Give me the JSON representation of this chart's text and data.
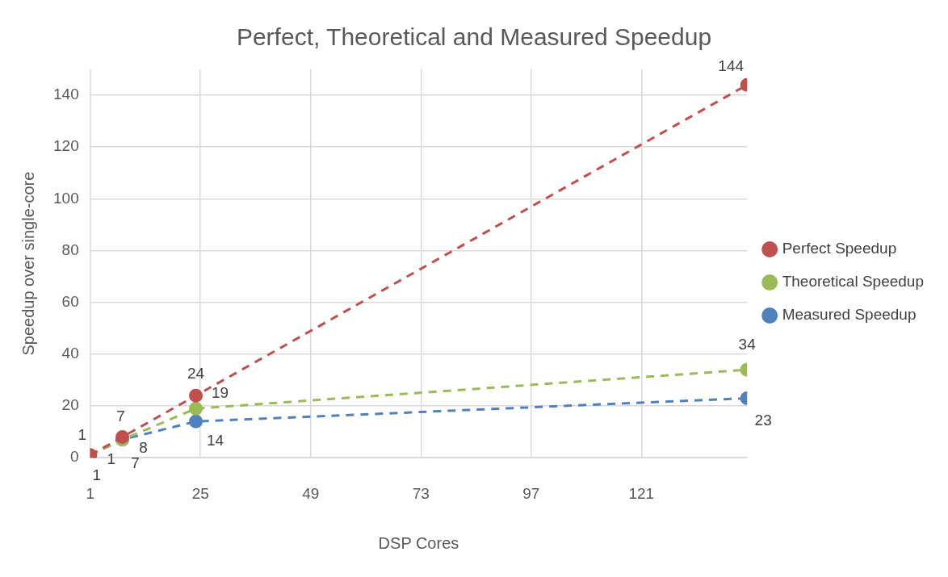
{
  "chart_data": {
    "type": "line",
    "title": "Perfect, Theoretical and Measured Speedup",
    "xlabel": "DSP Cores",
    "ylabel": "Speedup over single-core",
    "x": [
      1,
      8,
      24,
      144
    ],
    "series": [
      {
        "name": "Perfect Speedup",
        "color": "#c0504d",
        "values": [
          1,
          8,
          24,
          144
        ]
      },
      {
        "name": "Theoretical Speedup",
        "color": "#9bbb59",
        "values": [
          1,
          7,
          19,
          34
        ]
      },
      {
        "name": "Measured Speedup",
        "color": "#4f81bd",
        "values": [
          1,
          7,
          14,
          23
        ]
      }
    ],
    "xlim": [
      1,
      144
    ],
    "xticks": [
      1,
      25,
      49,
      73,
      97,
      121
    ],
    "ylim": [
      0,
      150
    ],
    "yticks": [
      0,
      20,
      40,
      60,
      80,
      100,
      120,
      140
    ],
    "grid": true,
    "legend": "right",
    "marker": "circle",
    "line_style": "dashed",
    "data_labels": true
  }
}
